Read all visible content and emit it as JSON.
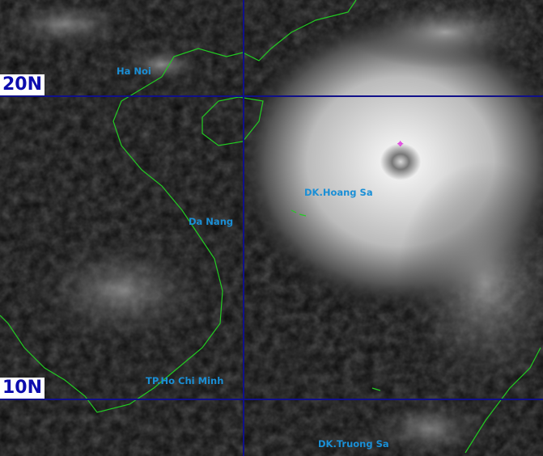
{
  "latitude_labels": [
    "20N",
    "10N"
  ],
  "places": [
    "Ha Noi",
    "Da Nang",
    "DK.Hoang Sa",
    "TP.Ho Chi Minh",
    "DK.Truong Sa"
  ],
  "storm_center_marker": "⌖",
  "colors": {
    "grid": "#10108a",
    "coastline": "#22cc22",
    "labels": "#1a8fd6",
    "storm_marker": "#e040e0"
  }
}
